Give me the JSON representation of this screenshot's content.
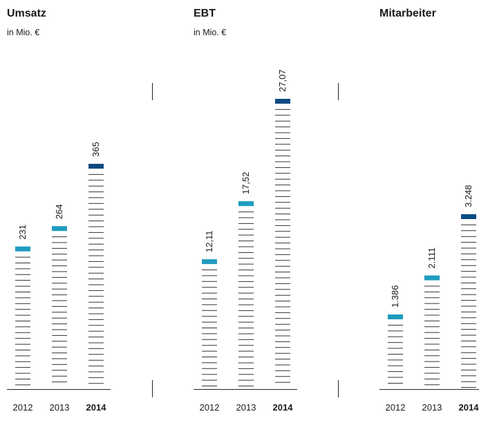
{
  "chart_data": [
    {
      "type": "bar",
      "title": "Umsatz",
      "subtitle": "in Mio. €",
      "categories": [
        "2012",
        "2013",
        "2014"
      ],
      "values": [
        231,
        264,
        365
      ],
      "value_labels": [
        "231",
        "264",
        "365"
      ],
      "colors": [
        "#1f9cc0",
        "#1f9cc0",
        "#0b4a82"
      ]
    },
    {
      "type": "bar",
      "title": "EBT",
      "subtitle": "in Mio. €",
      "categories": [
        "2012",
        "2013",
        "2014"
      ],
      "values": [
        12.11,
        17.52,
        27.07
      ],
      "value_labels": [
        "12,11",
        "17,52",
        "27,07"
      ],
      "colors": [
        "#1f9cc0",
        "#1f9cc0",
        "#0b4a82"
      ]
    },
    {
      "type": "bar",
      "title": "Mitarbeiter",
      "categories": [
        "2012",
        "2013",
        "2014"
      ],
      "values": [
        1386,
        2111,
        3248
      ],
      "value_labels": [
        "1.386",
        "2.111",
        "3.248"
      ],
      "colors": [
        "#1f9cc0",
        "#1f9cc0",
        "#0b4a82"
      ]
    }
  ]
}
